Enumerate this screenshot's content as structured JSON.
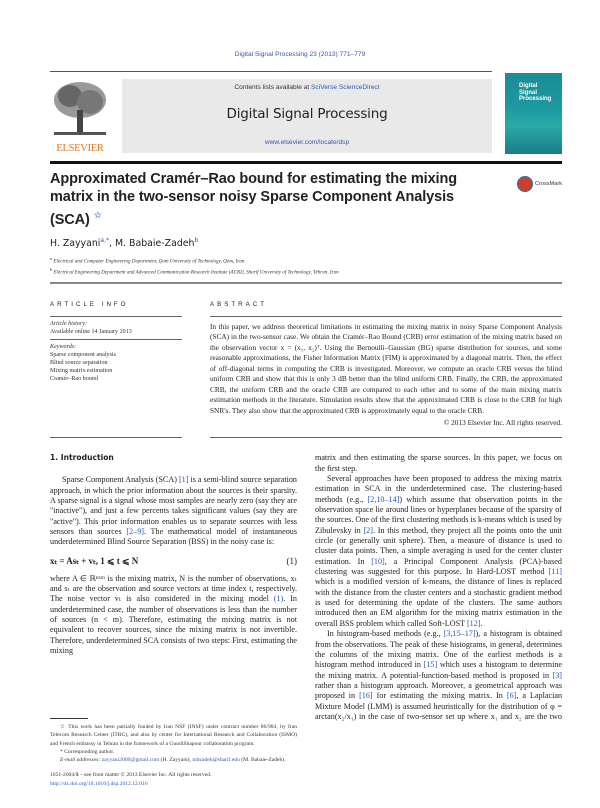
{
  "journal_ref": "Digital Signal Processing 23 (2013) 771–779",
  "masthead": {
    "publisher_logo": "ELSEVIER",
    "contents_prefix": "Contents lists available at ",
    "contents_link": "SciVerse ScienceDirect",
    "journal_name": "Digital Signal Processing",
    "url": "www.elsevier.com/locate/dsp",
    "cover_title": "Digital Signal Processing"
  },
  "article": {
    "title": "Approximated Cramér–Rao bound for estimating the mixing matrix in the two-sensor noisy Sparse Component Analysis (SCA)",
    "title_note_mark": "☆",
    "crossmark": "CrossMark",
    "authors": [
      {
        "name": "H. Zayyani",
        "affil": "a,*"
      },
      {
        "name": "M. Babaie-Zadeh",
        "affil": "b"
      }
    ],
    "author_separator": ", ",
    "affiliations": [
      {
        "mark": "a",
        "text": "Electrical and Computer Engineering Department, Qom University of Technology, Qom, Iran"
      },
      {
        "mark": "b",
        "text": "Electrical Engineering Department and Advanced Communication Research Institute (ACRI), Sharif University of Technology, Tehran, Iran"
      }
    ]
  },
  "article_info": {
    "heading": "ARTICLE INFO",
    "history_label": "Article history:",
    "history_value": "Available online 14 January 2013",
    "keywords_label": "Keywords:",
    "keywords": [
      "Sparse component analysis",
      "Blind source separation",
      "Mixing matrix estimation",
      "Cramér–Rao bound"
    ]
  },
  "abstract": {
    "heading": "ABSTRACT",
    "text": "In this paper, we address theoretical limitations in estimating the mixing matrix in noisy Sparse Component Analysis (SCA) in the two-sensor case. We obtain the Cramér–Rao Bound (CRB) error estimation of the mixing matrix based on the observation vector x = (x₁, x₂)ᵀ. Using the Bernoulli–Gaussian (BG) sparse distribution for sources, and some reasonable approximations, the Fisher Information Matrix (FIM) is approximated by a diagonal matrix. Then, the effect of off-diagonal terms in computing the CRB is investigated. Moreover, we compute an oracle CRB versus the blind uniform CRB and show that this is only 3 dB better than the blind uniform CRB. Finally, the CRB, the approximated CRB, the uniform CRB and the oracle CRB are compared to each other and to some of the main mixing matrix estimation methods in the literature. Simulation results show that the approximated CRB is close to the CRB for high SNR's. They also show that the approximated CRB is approximately equal to the oracle CRB.",
    "copyright": "© 2013 Elsevier Inc. All rights reserved."
  },
  "intro": {
    "heading": "1. Introduction",
    "p1": [
      "Sparse Component Analysis (SCA) ",
      "[1]",
      " is a semi-blind source separation approach, in which the prior information about the sources is their sparsity. A sparse signal is a signal whose most samples are nearly zero (say they are \"inactive\"), and just a few percents takes significant values (say they are \"active\"). This prior information enables us to separate sources with less sensors than sources ",
      "[2–9]",
      ". The mathematical model of instantaneous underdetermined Blind Source Separation (BSS) in the noisy case is:"
    ],
    "equation": {
      "lhs": "xₜ = Asₜ + vₜ,    1 ⩽ t ⩽ N",
      "number": "(1)"
    },
    "p2": [
      "where A ∈ ℝⁿˣᵐ is the mixing matrix, N is the number of observations, xₜ and sₜ are the observation and source vectors at time index t, respectively. The noise vector vₜ is also considered in the mixing model ",
      "(1)",
      ". In underdetermined case, the number of observations is less than the number of sources (n < m). Therefore, estimating the mixing matrix is not equivalent to recover sources, since the mixing matrix is not invertible. Therefore, underdetermined SCA consists of two steps: First, estimating the mixing"
    ],
    "p3": "matrix and then estimating the sparse sources. In this paper, we focus on the first step.",
    "p4": [
      "Several approaches have been proposed to address the mixing matrix estimation in SCA in the underdetermined case. The clustering-based methods (e.g., ",
      "[2,10–14]",
      ") which assume that observation points in the observation space lie around lines or hyperplanes because of the sparsity of the sources. One of the first clustering methods is k-means which is used by Zibulevsky in ",
      "[2]",
      ". In this method, they project all the points onto the unit circle (or generally unit sphere). Then, a measure of distance is used to cluster data points. Then, a simple averaging is used for the center cluster estimation. In ",
      "[10]",
      ", a Principal Component Analysis (PCA)-based clustering was suggested for this purpose. In Hard-LOST method ",
      "[11]",
      " which is a modified version of k-means, the distance of lines is replaced with the distance from the cluster centers and a stochastic gradient method is used for determining the update of the clusters. The same authors introduced then an EM algorithm for the mixing matrix estimation in the overall BSS problem which called Soft-LOST ",
      "[12]",
      "."
    ],
    "p5": [
      "In histogram-based methods (e.g., ",
      "[3,15–17]",
      "), a histogram is obtained from the observations. The peak of these histograms, in general, determines the columns of the mixing matrix. One of the earliest methods is a histogram method introduced in ",
      "[15]",
      " which uses a histogram to determine the mixing matrix. A potential-function-based method is proposed in ",
      "[3]",
      " rather than a histogram approach. Moreover, a geometrical approach was proposed in ",
      "[16]",
      " for estimating the mixing matrix. In ",
      "[6]",
      ", a Laplacian Mixture Model (LMM) is assumed heuristically for the distribution of φ = arctan(x₂/x₁) in the case of two-sensor set up where x₁ and x₂ are the two"
    ]
  },
  "footnotes": {
    "funding_mark": "☆",
    "funding": "This work has been partially funded by Iran NSF (INSF) under contract number 86/984, by Iran Telecom Research Center (ITRC), and also by center for International Research and Collaboration (ISMO) and French embassy in Tehran in the framework of a GundiShapour collaboration program.",
    "corresponding_mark": "*",
    "corresponding": "Corresponding author.",
    "email_label": "E-mail addresses: ",
    "email1": "zayyani2009@gmail.com",
    "email1_owner": " (H. Zayyani), ",
    "email2": "mbzadeh@sharif.edu",
    "email2_owner": " (M. Babaie-Zadeh).",
    "issn": "1051-2004/$ – see front matter © 2013 Elsevier Inc. All rights reserved.",
    "doi": "http://dx.doi.org/10.1016/j.dsp.2012.12.016"
  },
  "colors": {
    "link": "#2a58b8",
    "elsevier_orange": "#e5761c",
    "cover_teal": "#1d9aa0",
    "masthead_bg": "#e9e9e9"
  }
}
